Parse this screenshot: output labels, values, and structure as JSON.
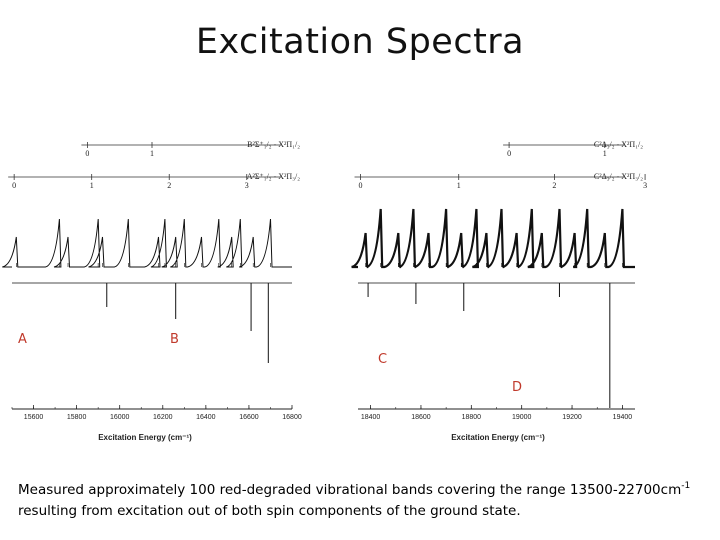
{
  "slide": {
    "title": "Excitation Spectra",
    "caption": {
      "part1": "Measured approximately 100 red-degraded vibrational bands covering the range 13500-22700cm",
      "sup": "-1",
      "part2": " resulting from excitation out of both spin components of the ground state."
    }
  },
  "panel_markers": [
    "A",
    "B",
    "C",
    "D"
  ],
  "chart_data": [
    {
      "type": "line",
      "panel": "left",
      "xlabel": "Excitation Energy (cm⁻¹)",
      "xlim": [
        15500,
        16800
      ],
      "xticks": [
        15600,
        15800,
        16000,
        16200,
        16400,
        16600,
        16800
      ],
      "progressions": [
        {
          "name": "B²Σ⁺₁/₂ - X²Π₁/₂",
          "v_prime": [
            0,
            1
          ],
          "positions": [
            15850,
            16150
          ]
        },
        {
          "name": "A²Σ⁺₁/₂ - X²Π₃/₂",
          "v_prime": [
            0,
            1,
            2,
            3
          ],
          "positions": [
            15510,
            15870,
            16230,
            16590
          ]
        }
      ],
      "band_heads": [
        15520,
        15720,
        15760,
        15900,
        15920,
        16040,
        16180,
        16210,
        16260,
        16300,
        16380,
        16460,
        16520,
        16560,
        16620,
        16700
      ],
      "depletion_dips": [
        15940,
        16260,
        16610,
        16690
      ]
    },
    {
      "type": "line",
      "panel": "right",
      "xlabel": "Excitation Energy (cm⁻¹)",
      "xlim": [
        18350,
        19450
      ],
      "xticks": [
        18400,
        18600,
        18800,
        19000,
        19200,
        19400
      ],
      "progressions": [
        {
          "name": "C²Δ₃/₂ - X²Π₁/₂",
          "v_prime": [
            0,
            1
          ],
          "positions": [
            18950,
            19330
          ]
        },
        {
          "name": "C²Δ₃/₂ - X²Π₃/₂",
          "v_prime": [
            0,
            1,
            2,
            3
          ],
          "positions": [
            18360,
            18750,
            19130,
            19490
          ]
        }
      ],
      "band_heads": [
        18380,
        18440,
        18510,
        18570,
        18630,
        18700,
        18760,
        18820,
        18860,
        18920,
        18980,
        19040,
        19080,
        19150,
        19210,
        19260,
        19330,
        19400
      ],
      "depletion_dips": [
        18390,
        18580,
        18770,
        19150,
        19350
      ]
    }
  ]
}
